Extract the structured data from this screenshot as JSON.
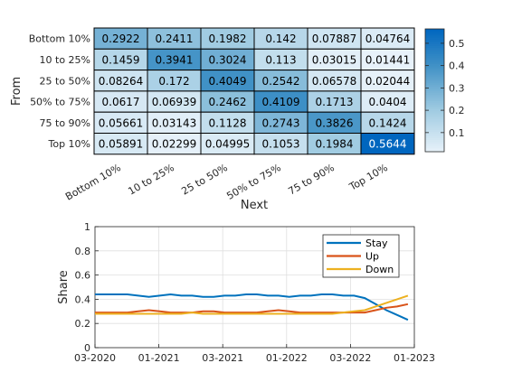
{
  "chart_data": [
    {
      "type": "heatmap",
      "xlabel": "Next",
      "ylabel": "From",
      "categories_x": [
        "Bottom 10%",
        "10 to 25%",
        "25 to 50%",
        "50% to 75%",
        "75 to 90%",
        "Top 10%"
      ],
      "categories_y": [
        "Bottom 10%",
        "10 to 25%",
        "25 to 50%",
        "50% to 75%",
        "75 to 90%",
        "Top 10%"
      ],
      "values": [
        [
          "0.2922",
          "0.2411",
          "0.1982",
          "0.142",
          "0.07887",
          "0.04764"
        ],
        [
          "0.1459",
          "0.3941",
          "0.3024",
          "0.113",
          "0.03015",
          "0.01441"
        ],
        [
          "0.08264",
          "0.172",
          "0.4049",
          "0.2542",
          "0.06578",
          "0.02044"
        ],
        [
          "0.0617",
          "0.06939",
          "0.2462",
          "0.4109",
          "0.1713",
          "0.0404"
        ],
        [
          "0.05661",
          "0.03143",
          "0.1128",
          "0.2743",
          "0.3826",
          "0.1424"
        ],
        [
          "0.05891",
          "0.02299",
          "0.04995",
          "0.1053",
          "0.1984",
          "0.5644"
        ]
      ],
      "colorbar": {
        "range": [
          0.0144,
          0.5644
        ],
        "ticks": [
          "0.1",
          "0.2",
          "0.3",
          "0.4",
          "0.5"
        ]
      }
    },
    {
      "type": "line",
      "ylabel": "Share",
      "xlabel": "",
      "ylim": [
        0,
        1
      ],
      "yticks": [
        "0",
        "0.2",
        "0.4",
        "0.6",
        "0.8",
        "1"
      ],
      "xticks": [
        "03-2020",
        "01-2021",
        "03-2021",
        "01-2022",
        "03-2022",
        "01-2023"
      ],
      "grid": true,
      "legend_position": "top-right",
      "x": [
        0,
        1,
        2,
        3,
        4,
        5,
        6,
        7,
        8,
        9,
        10,
        11,
        12,
        13,
        14,
        15,
        16,
        17,
        18,
        19,
        20,
        21,
        22,
        23,
        24,
        25,
        26,
        27,
        28,
        29
      ],
      "series": [
        {
          "name": "Stay",
          "color": "#0072BD",
          "values": [
            0.44,
            0.44,
            0.44,
            0.44,
            0.43,
            0.42,
            0.43,
            0.44,
            0.43,
            0.43,
            0.42,
            0.42,
            0.43,
            0.43,
            0.44,
            0.44,
            0.43,
            0.43,
            0.42,
            0.43,
            0.43,
            0.44,
            0.44,
            0.43,
            0.43,
            0.41,
            0.36,
            0.31,
            0.27,
            0.23
          ]
        },
        {
          "name": "Up",
          "color": "#D95319",
          "values": [
            0.29,
            0.29,
            0.29,
            0.29,
            0.3,
            0.31,
            0.3,
            0.29,
            0.29,
            0.29,
            0.3,
            0.3,
            0.29,
            0.29,
            0.29,
            0.29,
            0.3,
            0.31,
            0.3,
            0.29,
            0.29,
            0.29,
            0.29,
            0.29,
            0.29,
            0.29,
            0.31,
            0.33,
            0.34,
            0.36
          ]
        },
        {
          "name": "Down",
          "color": "#EDB120",
          "values": [
            0.28,
            0.28,
            0.28,
            0.28,
            0.28,
            0.28,
            0.28,
            0.28,
            0.28,
            0.29,
            0.28,
            0.28,
            0.28,
            0.28,
            0.28,
            0.28,
            0.28,
            0.28,
            0.28,
            0.28,
            0.28,
            0.28,
            0.28,
            0.29,
            0.3,
            0.31,
            0.34,
            0.37,
            0.4,
            0.43
          ]
        }
      ]
    }
  ]
}
